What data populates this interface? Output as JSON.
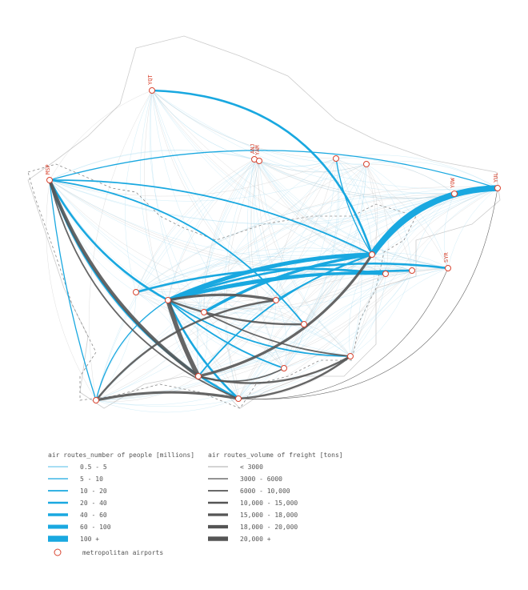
{
  "airports": [
    {
      "label": "YQT"
    },
    {
      "label": "ANJ"
    },
    {
      "label": "YAM"
    },
    {
      "label": "MSP"
    },
    {
      "label": "YUL"
    },
    {
      "label": "YOW"
    },
    {
      "label": "SYR"
    }
  ],
  "legend_people": {
    "title": "air routes_number of people [millions]",
    "items": [
      "0.5 - 5",
      "5 - 10",
      "10 - 20",
      "20 - 40",
      "40 - 60",
      "60 - 100",
      "100 +"
    ]
  },
  "legend_freight": {
    "title": "air routes_volume of freight [tons]",
    "items": [
      "< 3000",
      "3000 - 6000",
      "6000 - 10,000",
      "10,000 - 15,000",
      "15,000 - 18,000",
      "18,000 - 20,000",
      "20,000 +"
    ]
  },
  "legend_airports": {
    "label": "metropolitan airports"
  }
}
